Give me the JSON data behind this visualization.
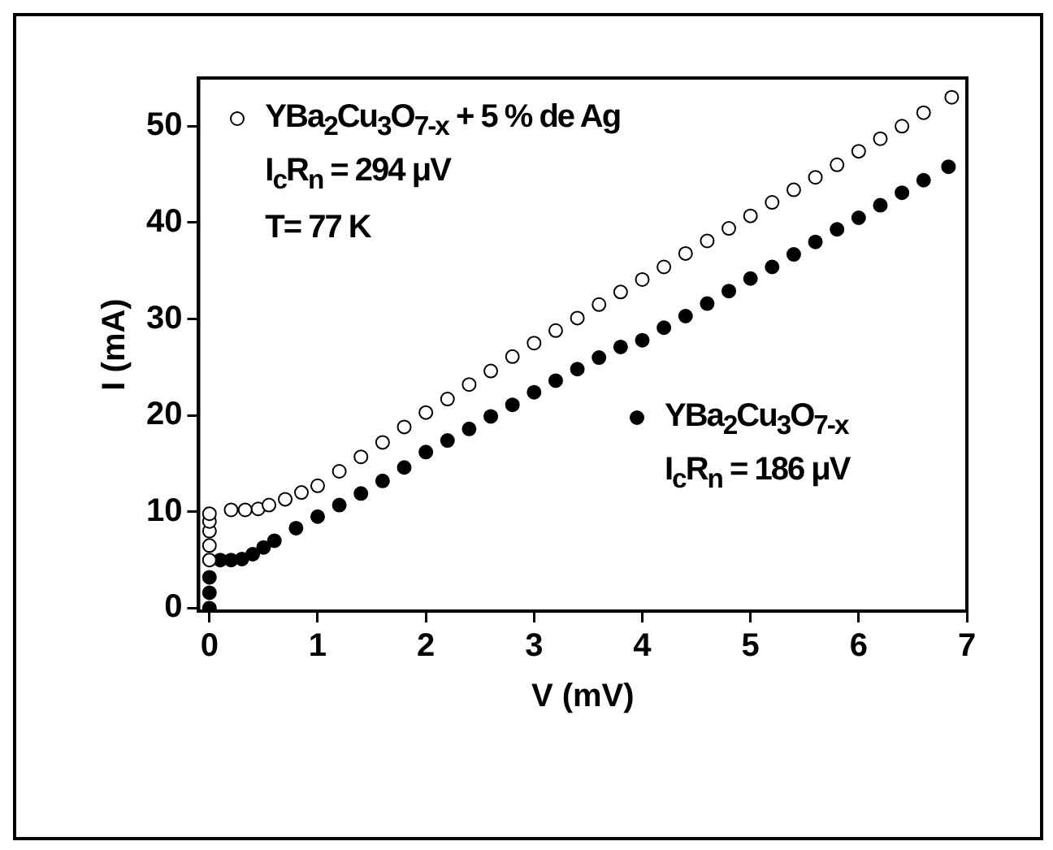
{
  "chart_data": {
    "type": "scatter",
    "xlabel": "V (mV)",
    "ylabel": "I (mA)",
    "xlim": [
      -0.1,
      7
    ],
    "xticks": [
      0,
      1,
      2,
      3,
      4,
      5,
      6,
      7
    ],
    "ylim": [
      -0.3,
      55
    ],
    "yticks": [
      0,
      10,
      20,
      30,
      40,
      50
    ],
    "grid": false,
    "legend": "top left",
    "marker": "circle",
    "annotations": [
      "I$_{c}$R$_{n}$ = 294 μV",
      "T= 77 K",
      "I$_{c}$R$_{n}$ = 186 μV"
    ],
    "series": [
      {
        "name": "YBa$_{2}$Cu$_{3}$O$_{7-x}$ + 5 % de Ag",
        "color": "#ffffff",
        "x": [
          0,
          0,
          0,
          0,
          0,
          0.2,
          0.33,
          0.45,
          0.55,
          0.7,
          0.85,
          1.0,
          1.2,
          1.4,
          1.6,
          1.8,
          2.0,
          2.2,
          2.4,
          2.6,
          2.8,
          3.0,
          3.2,
          3.4,
          3.6,
          3.8,
          4.0,
          4.2,
          4.4,
          4.6,
          4.8,
          5.0,
          5.2,
          5.4,
          5.6,
          5.8,
          6.0,
          6.2,
          6.4,
          6.6,
          6.86
        ],
        "values": [
          5,
          6.5,
          8,
          9,
          9.8,
          10.2,
          10.2,
          10.3,
          10.7,
          11.3,
          12,
          12.7,
          14.2,
          15.7,
          17.2,
          18.8,
          20.3,
          21.7,
          23.2,
          24.6,
          26.1,
          27.5,
          28.8,
          30.1,
          31.5,
          32.8,
          34.1,
          35.4,
          36.8,
          38.1,
          39.4,
          40.7,
          42.1,
          43.4,
          44.7,
          46,
          47.4,
          48.7,
          50,
          51.4,
          53
        ]
      },
      {
        "name": "YBa$_{2}$Cu$_{3}$O$_{7-x}$",
        "color": "#000000",
        "x": [
          0,
          0,
          0,
          0.1,
          0.2,
          0.3,
          0.4,
          0.5,
          0.6,
          0.8,
          1.0,
          1.2,
          1.4,
          1.6,
          1.8,
          2.0,
          2.2,
          2.4,
          2.6,
          2.8,
          3.0,
          3.2,
          3.4,
          3.6,
          3.8,
          4.0,
          4.2,
          4.4,
          4.6,
          4.8,
          5.0,
          5.2,
          5.4,
          5.6,
          5.8,
          6.0,
          6.2,
          6.4,
          6.6,
          6.83
        ],
        "values": [
          0,
          1.6,
          3.2,
          5,
          5,
          5.1,
          5.6,
          6.3,
          7,
          8.3,
          9.5,
          10.7,
          11.9,
          13.2,
          14.6,
          16.2,
          17.4,
          18.6,
          19.9,
          21.1,
          22.4,
          23.6,
          24.8,
          26,
          27.1,
          27.8,
          29.1,
          30.3,
          31.6,
          32.9,
          34.2,
          35.4,
          36.7,
          38,
          39.3,
          40.5,
          41.8,
          43.1,
          44.4,
          45.8
        ]
      }
    ]
  }
}
